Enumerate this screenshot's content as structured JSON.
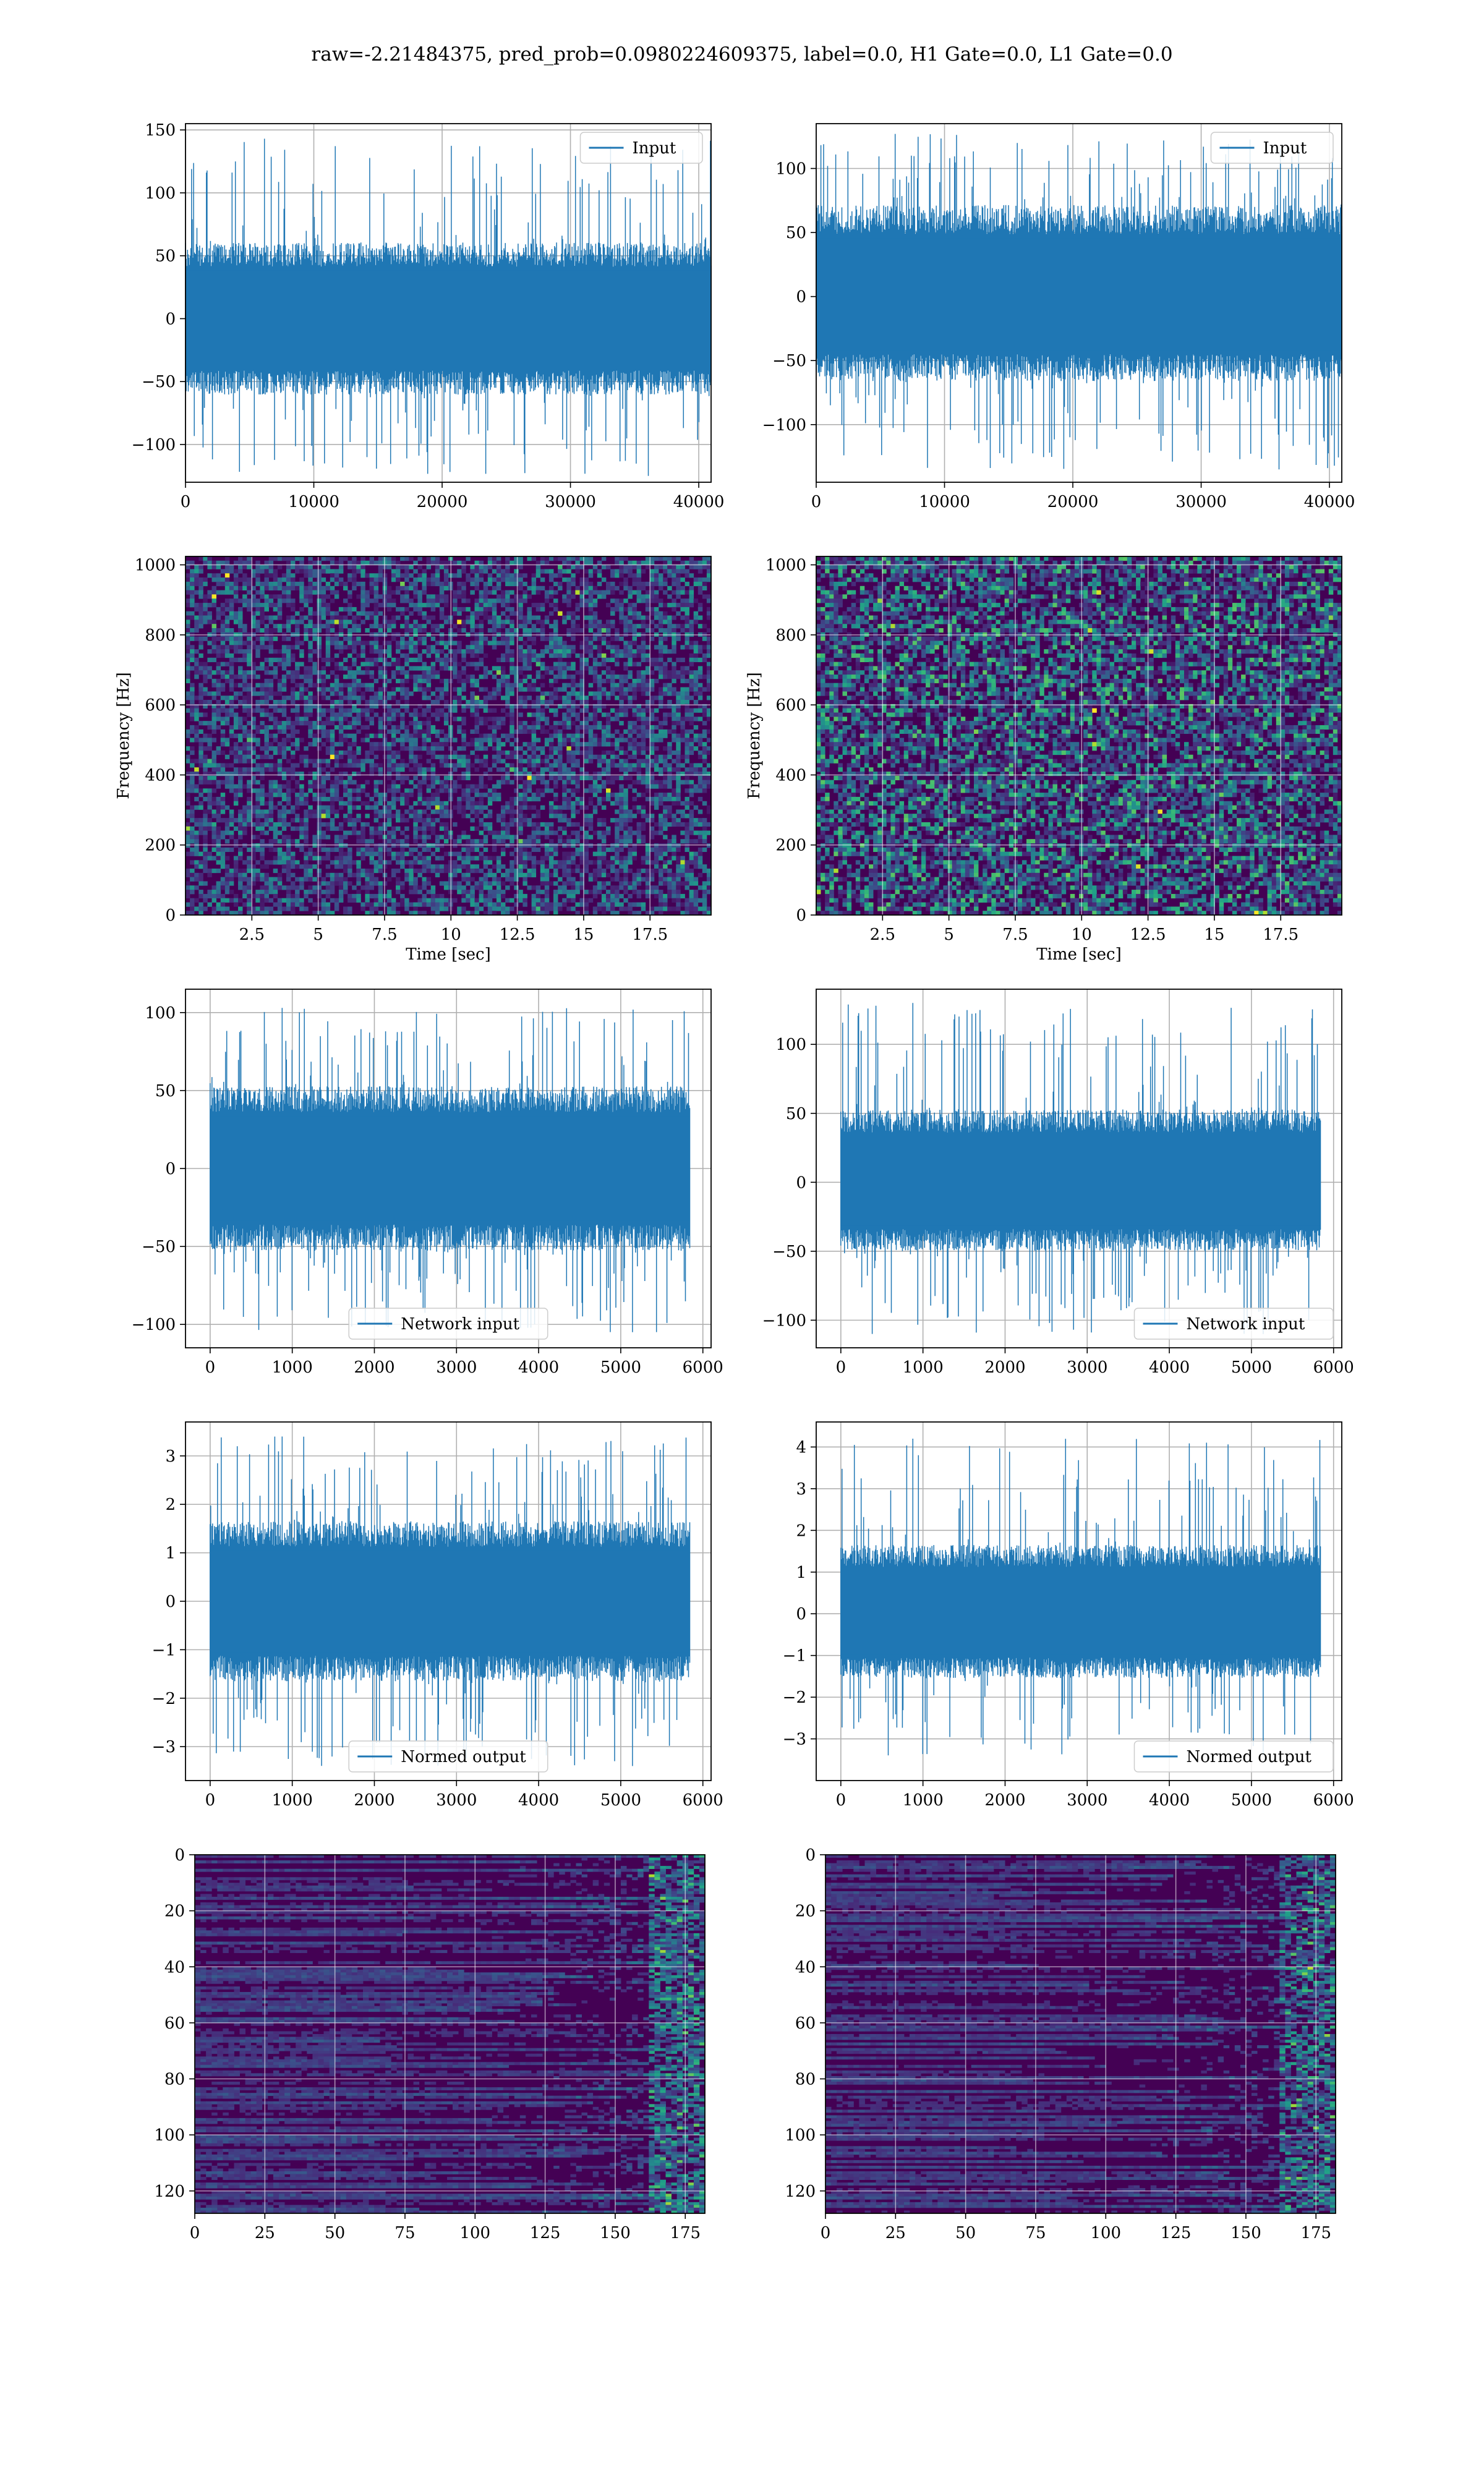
{
  "title": "raw=-2.21484375, pred_prob=0.0980224609375, label=0.0, H1 Gate=0.0, L1 Gate=0.0",
  "colors": {
    "line": "#1f77b4",
    "viridis_dark": "#440154",
    "grid": "#b0b0b0"
  },
  "chart_data": [
    {
      "type": "line",
      "name": "panel-0-0",
      "x": {
        "range": [
          0,
          40960
        ],
        "ticks": [
          0,
          10000,
          20000,
          30000,
          40000
        ]
      },
      "y": {
        "range": [
          -130,
          155
        ],
        "ticks": [
          -100,
          -50,
          0,
          50,
          100,
          150
        ]
      },
      "series": [
        {
          "name": "Input",
          "n": 40960,
          "band": [
            -55,
            55
          ],
          "tail": [
            -125,
            143
          ]
        }
      ],
      "legend": "upper right",
      "grid": true
    },
    {
      "type": "line",
      "name": "panel-0-1",
      "x": {
        "range": [
          0,
          40960
        ],
        "ticks": [
          0,
          10000,
          20000,
          30000,
          40000
        ]
      },
      "y": {
        "range": [
          -145,
          135
        ],
        "ticks": [
          -100,
          -50,
          0,
          50,
          100
        ]
      },
      "series": [
        {
          "name": "Input",
          "n": 40960,
          "band": [
            -60,
            65
          ],
          "tail": [
            -135,
            127
          ]
        }
      ],
      "legend": "upper right",
      "grid": true
    },
    {
      "type": "heatmap",
      "name": "panel-1-0",
      "x": {
        "range": [
          0,
          19.8
        ],
        "ticks": [
          2.5,
          5.0,
          7.5,
          10.0,
          12.5,
          15.0,
          17.5
        ],
        "label": "Time [sec]"
      },
      "y": {
        "range": [
          0,
          1024
        ],
        "ticks": [
          0,
          200,
          400,
          600,
          800,
          1000
        ],
        "label": "Frequency [Hz]"
      },
      "grid": true
    },
    {
      "type": "heatmap",
      "name": "panel-1-1",
      "x": {
        "range": [
          0,
          19.8
        ],
        "ticks": [
          2.5,
          5.0,
          7.5,
          10.0,
          12.5,
          15.0,
          17.5
        ],
        "label": "Time [sec]"
      },
      "y": {
        "range": [
          0,
          1024
        ],
        "ticks": [
          0,
          200,
          400,
          600,
          800,
          1000
        ],
        "label": "Frequency [Hz]"
      },
      "grid": true
    },
    {
      "type": "line",
      "name": "panel-2-0",
      "x": {
        "range": [
          -300,
          6100
        ],
        "ticks": [
          0,
          1000,
          2000,
          3000,
          4000,
          5000,
          6000
        ]
      },
      "y": {
        "range": [
          -115,
          115
        ],
        "ticks": [
          -100,
          -50,
          0,
          50,
          100
        ]
      },
      "series": [
        {
          "name": "Network input",
          "n": 5840,
          "band": [
            -48,
            48
          ],
          "tail": [
            -105,
            103
          ]
        }
      ],
      "legend": "lower center",
      "grid": true
    },
    {
      "type": "line",
      "name": "panel-2-1",
      "x": {
        "range": [
          -300,
          6100
        ],
        "ticks": [
          0,
          1000,
          2000,
          3000,
          4000,
          5000,
          6000
        ]
      },
      "y": {
        "range": [
          -120,
          140
        ],
        "ticks": [
          -100,
          -50,
          0,
          50,
          100
        ]
      },
      "series": [
        {
          "name": "Network input",
          "n": 5840,
          "band": [
            -45,
            48
          ],
          "tail": [
            -110,
            130
          ]
        }
      ],
      "legend": "lower right",
      "grid": true
    },
    {
      "type": "line",
      "name": "panel-3-0",
      "x": {
        "range": [
          -300,
          6100
        ],
        "ticks": [
          0,
          1000,
          2000,
          3000,
          4000,
          5000,
          6000
        ]
      },
      "y": {
        "range": [
          -3.7,
          3.7
        ],
        "ticks": [
          -3,
          -2,
          -1,
          0,
          1,
          2,
          3
        ]
      },
      "series": [
        {
          "name": "Normed output",
          "n": 5840,
          "band": [
            -1.5,
            1.5
          ],
          "tail": [
            -3.4,
            3.4
          ]
        }
      ],
      "legend": "lower center",
      "grid": true
    },
    {
      "type": "line",
      "name": "panel-3-1",
      "x": {
        "range": [
          -300,
          6100
        ],
        "ticks": [
          0,
          1000,
          2000,
          3000,
          4000,
          5000,
          6000
        ]
      },
      "y": {
        "range": [
          -4.0,
          4.6
        ],
        "ticks": [
          -3,
          -2,
          -1,
          0,
          1,
          2,
          3,
          4
        ]
      },
      "series": [
        {
          "name": "Normed output",
          "n": 5840,
          "band": [
            -1.4,
            1.5
          ],
          "tail": [
            -3.4,
            4.2
          ]
        }
      ],
      "legend": "lower right",
      "grid": true
    },
    {
      "type": "heatmap",
      "name": "panel-4-0",
      "x": {
        "range": [
          0,
          182
        ],
        "ticks": [
          0,
          25,
          50,
          75,
          100,
          125,
          150,
          175
        ]
      },
      "y": {
        "range": [
          128,
          0
        ],
        "ticks": [
          0,
          20,
          40,
          60,
          80,
          100,
          120
        ]
      },
      "grid": true
    },
    {
      "type": "heatmap",
      "name": "panel-4-1",
      "x": {
        "range": [
          0,
          182
        ],
        "ticks": [
          0,
          25,
          50,
          75,
          100,
          125,
          150,
          175
        ]
      },
      "y": {
        "range": [
          128,
          0
        ],
        "ticks": [
          0,
          20,
          40,
          60,
          80,
          100,
          120
        ]
      },
      "grid": true
    }
  ]
}
